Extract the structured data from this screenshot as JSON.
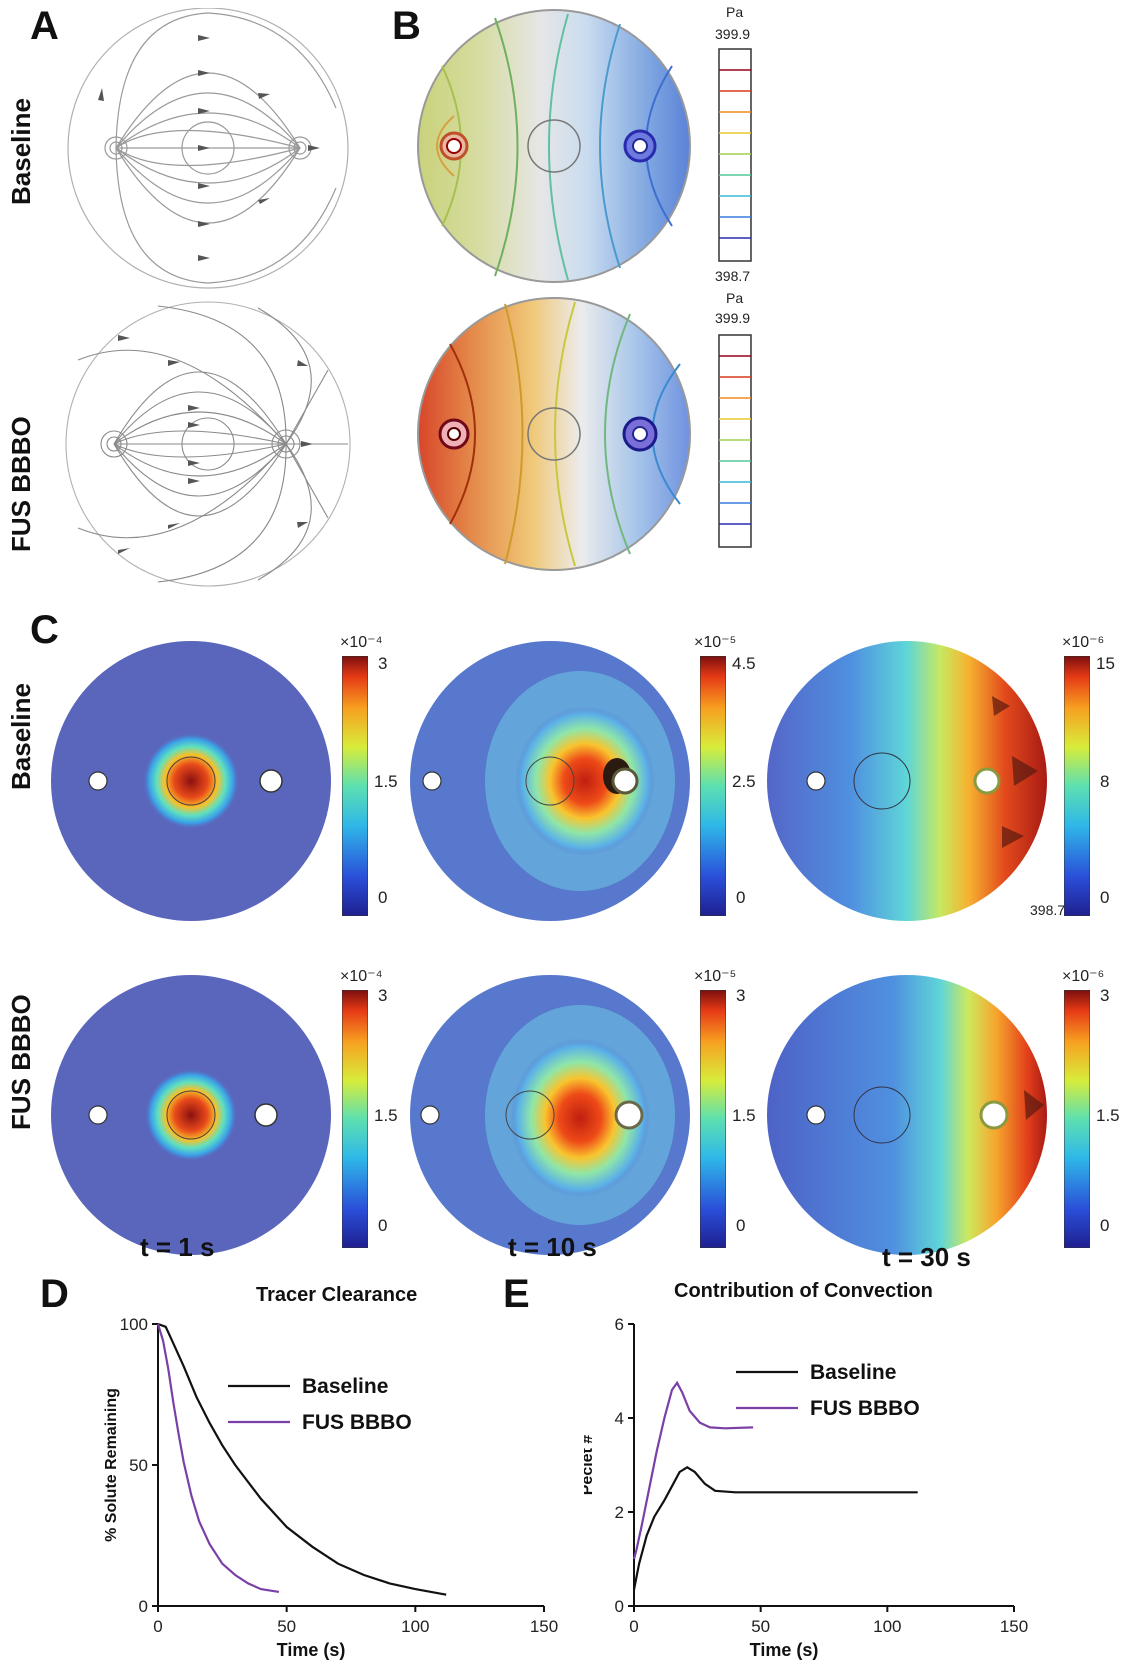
{
  "panels": {
    "A": "A",
    "B": "B",
    "C": "C",
    "D": "D",
    "E": "E"
  },
  "row_labels": {
    "baseline": "Baseline",
    "fus": "FUS BBBO"
  },
  "panel_B": {
    "unit": "Pa",
    "colorbar_top": "399.9",
    "colorbar_bottom": "398.7",
    "fus_unit": "Pa",
    "fus_colorbar_top": "399.9"
  },
  "panel_C": {
    "times": [
      "t = 1 s",
      "t = 10 s",
      "t = 30 s"
    ],
    "baseline": [
      {
        "scale": "×10⁻⁴",
        "ticks": [
          "3",
          "1.5",
          "0"
        ]
      },
      {
        "scale": "×10⁻⁵",
        "ticks": [
          "4.5",
          "2.5",
          "0"
        ]
      },
      {
        "scale": "×10⁻⁶",
        "ticks": [
          "15",
          "8",
          "0"
        ],
        "extra": "398.7"
      }
    ],
    "fus": [
      {
        "scale": "×10⁻⁴",
        "ticks": [
          "3",
          "1.5",
          "0"
        ]
      },
      {
        "scale": "×10⁻⁵",
        "ticks": [
          "3",
          "1.5",
          "0"
        ]
      },
      {
        "scale": "×10⁻⁶",
        "ticks": [
          "3",
          "1.5",
          "0"
        ]
      }
    ]
  },
  "colors": {
    "baseline_line": "#111111",
    "fus_line": "#7b3fa8",
    "field_bg": "#4a5fb5"
  },
  "chart_data": [
    {
      "type": "line",
      "title": "Tracer Clearance",
      "xlabel": "Time (s)",
      "ylabel": "% Solute Remaining",
      "xlim": [
        0,
        150
      ],
      "ylim": [
        0,
        100
      ],
      "xticks": [
        "0",
        "50",
        "100",
        "150"
      ],
      "yticks": [
        "0",
        "50",
        "100"
      ],
      "legend": "top-right",
      "series": [
        {
          "name": "Baseline",
          "x": [
            0,
            3,
            5,
            10,
            15,
            20,
            25,
            30,
            40,
            50,
            60,
            70,
            80,
            90,
            100,
            112
          ],
          "y": [
            100,
            99,
            95,
            85,
            74,
            65,
            57,
            50,
            38,
            28,
            21,
            15,
            11,
            8,
            6,
            4
          ]
        },
        {
          "name": "FUS BBBO",
          "x": [
            0,
            2,
            4,
            6,
            8,
            10,
            13,
            16,
            20,
            25,
            30,
            35,
            40,
            47
          ],
          "y": [
            100,
            94,
            84,
            72,
            61,
            51,
            39,
            30,
            22,
            15,
            11,
            8,
            6,
            5
          ]
        }
      ]
    },
    {
      "type": "line",
      "title": "Contribution of Convection",
      "xlabel": "Time (s)",
      "ylabel": "Peclet #",
      "xlim": [
        0,
        150
      ],
      "ylim": [
        0,
        6
      ],
      "xticks": [
        "0",
        "50",
        "100",
        "150"
      ],
      "yticks": [
        "0",
        "2",
        "4",
        "6"
      ],
      "legend": "top-right",
      "series": [
        {
          "name": "Baseline",
          "x": [
            0,
            2,
            5,
            8,
            12,
            15,
            18,
            21,
            24,
            28,
            32,
            40,
            60,
            80,
            112
          ],
          "y": [
            0.35,
            0.9,
            1.5,
            1.9,
            2.25,
            2.55,
            2.85,
            2.95,
            2.85,
            2.6,
            2.45,
            2.42,
            2.42,
            2.42,
            2.42
          ]
        },
        {
          "name": "FUS BBBO",
          "x": [
            0,
            1,
            3,
            6,
            9,
            12,
            15,
            17,
            19,
            22,
            26,
            30,
            36,
            47
          ],
          "y": [
            1.0,
            1.2,
            1.7,
            2.5,
            3.3,
            4.0,
            4.6,
            4.75,
            4.55,
            4.15,
            3.9,
            3.8,
            3.78,
            3.8
          ]
        }
      ]
    }
  ]
}
